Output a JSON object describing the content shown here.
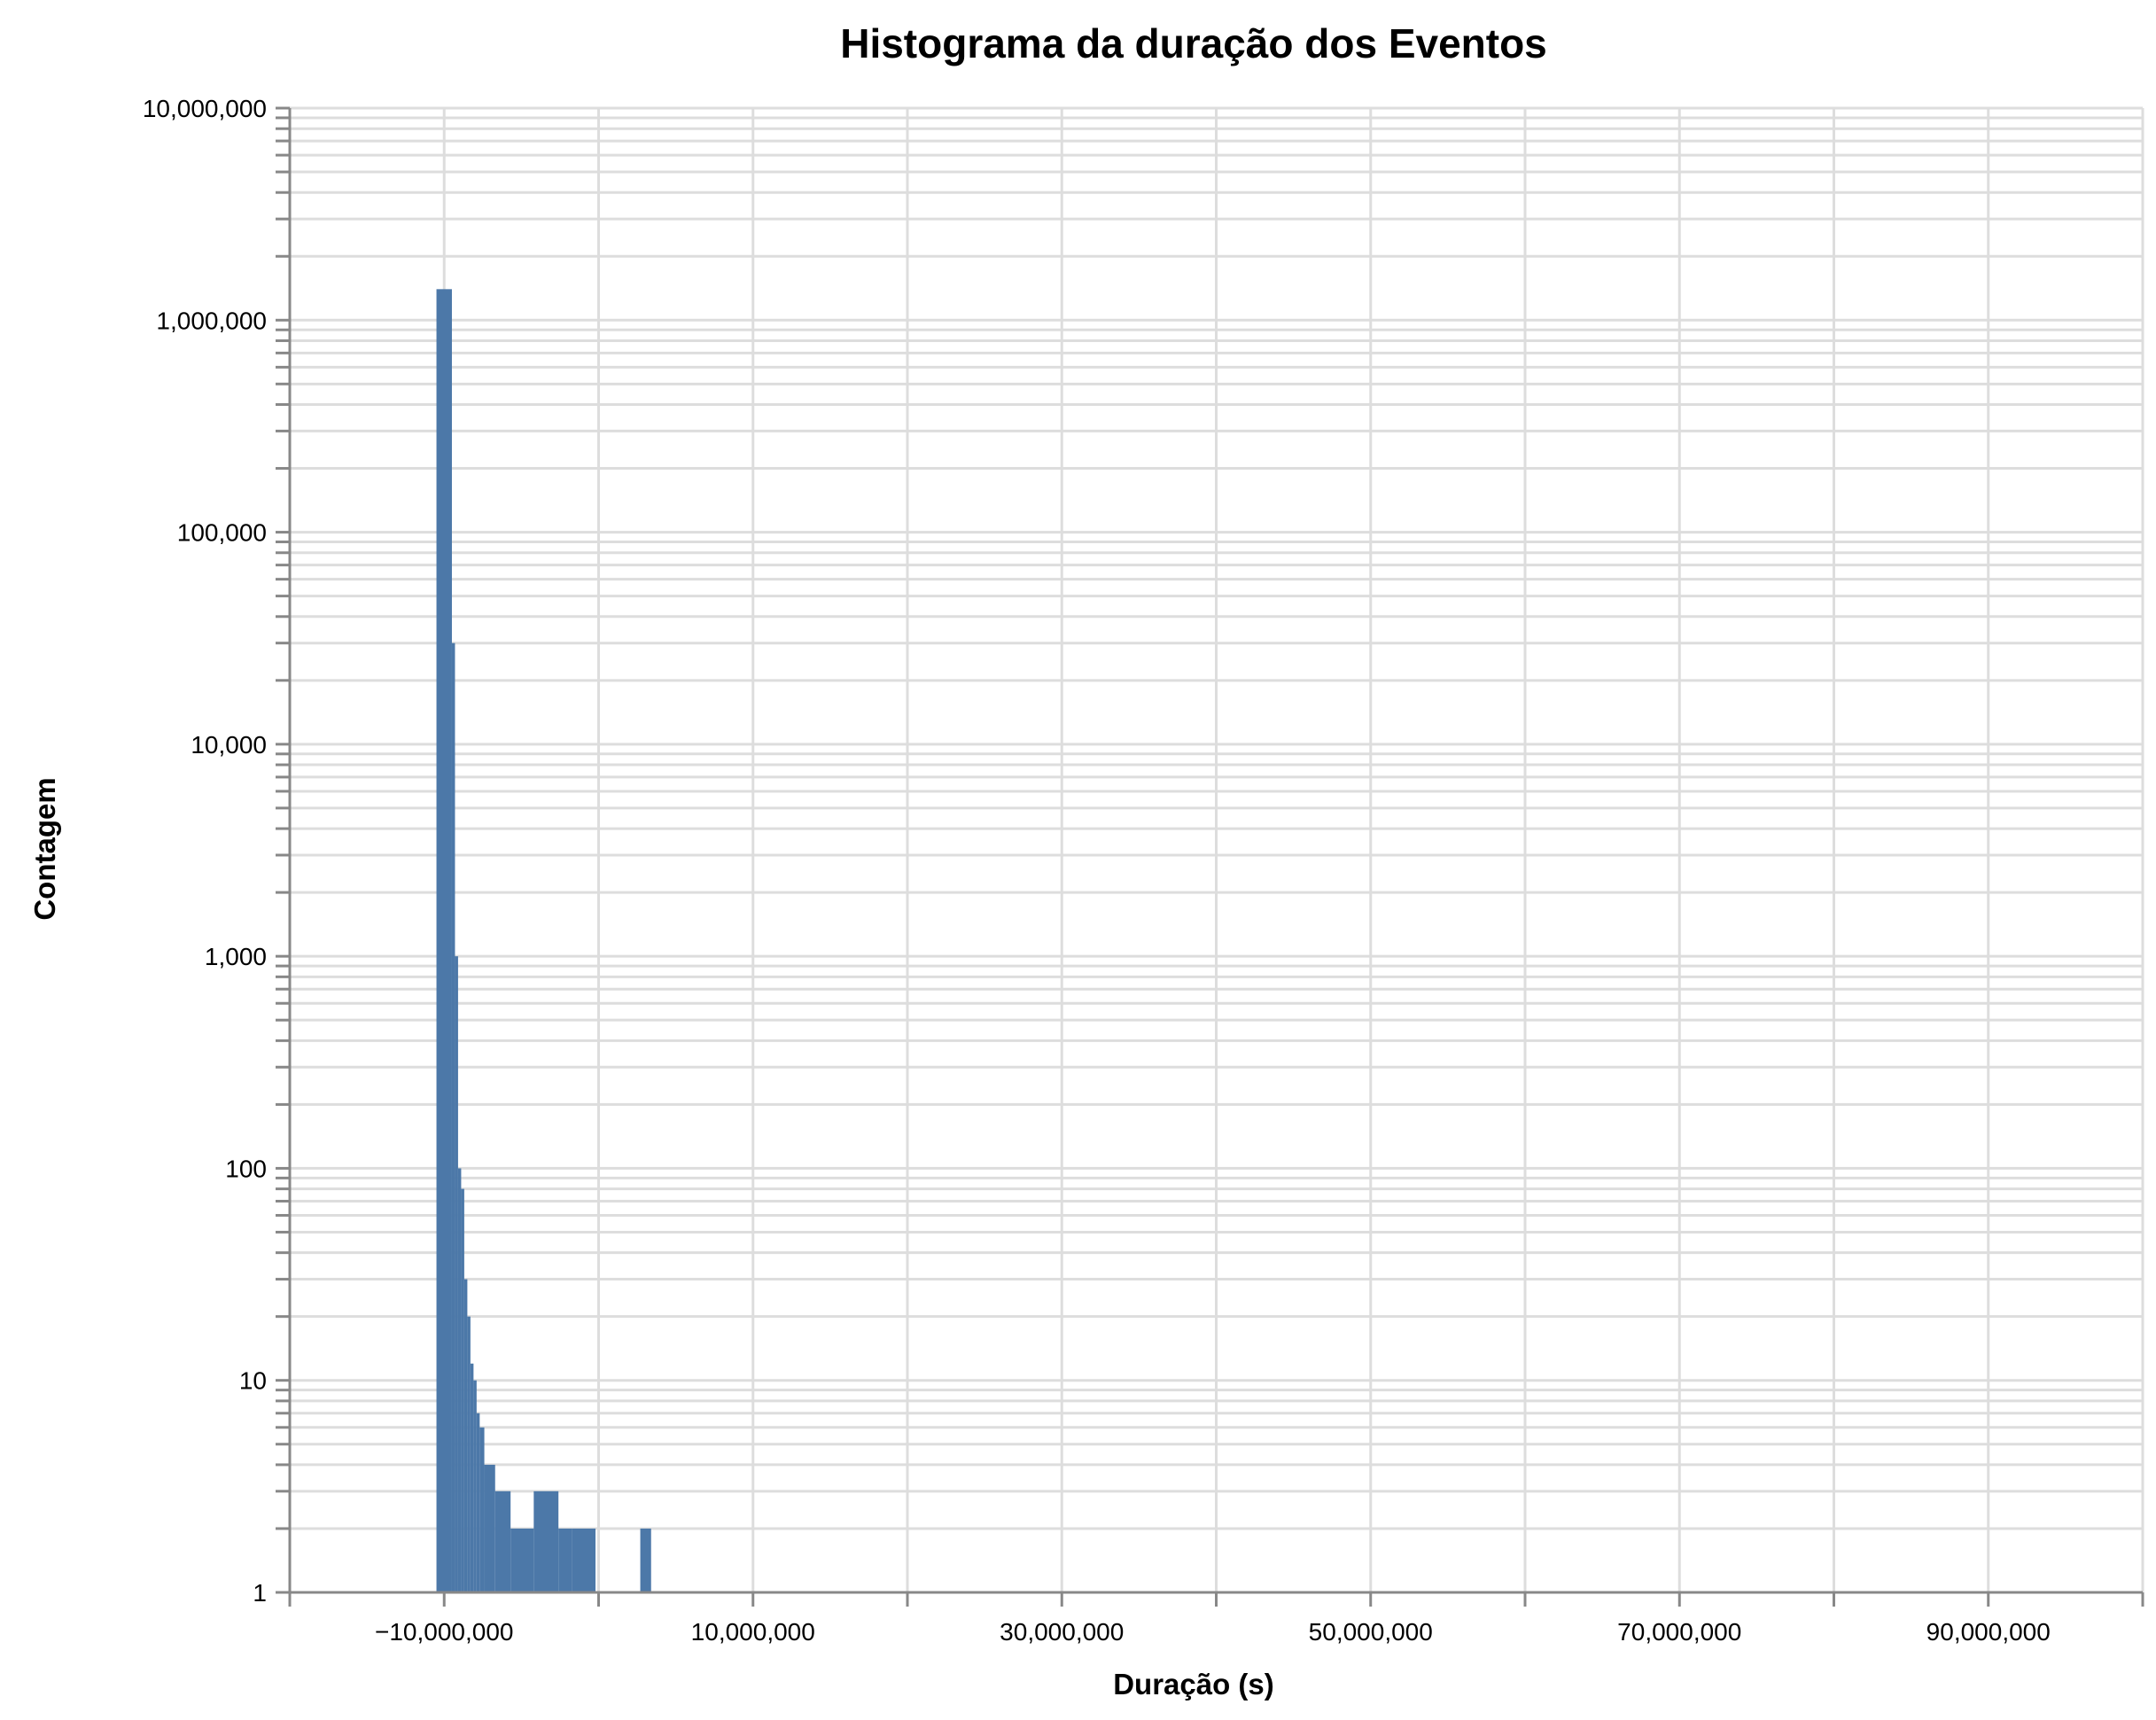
{
  "chart_data": {
    "type": "bar",
    "title": "Histograma da duração dos Eventos",
    "xlabel": "Duração (s)",
    "ylabel": "Contagem",
    "xscale": "linear",
    "yscale": "log",
    "xlim": [
      -20000000,
      100000000
    ],
    "ylim": [
      1,
      10000000
    ],
    "xticks": [
      -10000000,
      10000000,
      30000000,
      50000000,
      70000000,
      90000000
    ],
    "xtick_labels": [
      "−10,000,000",
      "10,000,000",
      "30,000,000",
      "50,000,000",
      "70,000,000",
      "90,000,000"
    ],
    "yticks": [
      1,
      10,
      100,
      1000,
      10000,
      100000,
      1000000,
      10000000
    ],
    "ytick_labels": [
      "1",
      "10",
      "100",
      "1,000",
      "10,000",
      "100,000",
      "1,000,000",
      "10,000,000"
    ],
    "grid": true,
    "color": "#4c78a8",
    "bins": [
      {
        "x0": -10500000,
        "x1": -9500000,
        "count": 1400000
      },
      {
        "x0": -9500000,
        "x1": -9300000,
        "count": 30000
      },
      {
        "x0": -9300000,
        "x1": -9100000,
        "count": 1000
      },
      {
        "x0": -9100000,
        "x1": -8900000,
        "count": 100
      },
      {
        "x0": -8900000,
        "x1": -8700000,
        "count": 80
      },
      {
        "x0": -8700000,
        "x1": -8500000,
        "count": 30
      },
      {
        "x0": -8500000,
        "x1": -8300000,
        "count": 20
      },
      {
        "x0": -8300000,
        "x1": -8100000,
        "count": 12
      },
      {
        "x0": -8100000,
        "x1": -7900000,
        "count": 10
      },
      {
        "x0": -7900000,
        "x1": -7700000,
        "count": 7
      },
      {
        "x0": -7700000,
        "x1": -7400000,
        "count": 6
      },
      {
        "x0": -7400000,
        "x1": -6700000,
        "count": 4
      },
      {
        "x0": -6700000,
        "x1": -5700000,
        "count": 3
      },
      {
        "x0": -5700000,
        "x1": -4200000,
        "count": 2
      },
      {
        "x0": -4200000,
        "x1": -2600000,
        "count": 3
      },
      {
        "x0": -2600000,
        "x1": -1700000,
        "count": 2
      },
      {
        "x0": -1700000,
        "x1": -200000,
        "count": 2
      },
      {
        "x0": 2700000,
        "x1": 3400000,
        "count": 2
      }
    ]
  }
}
